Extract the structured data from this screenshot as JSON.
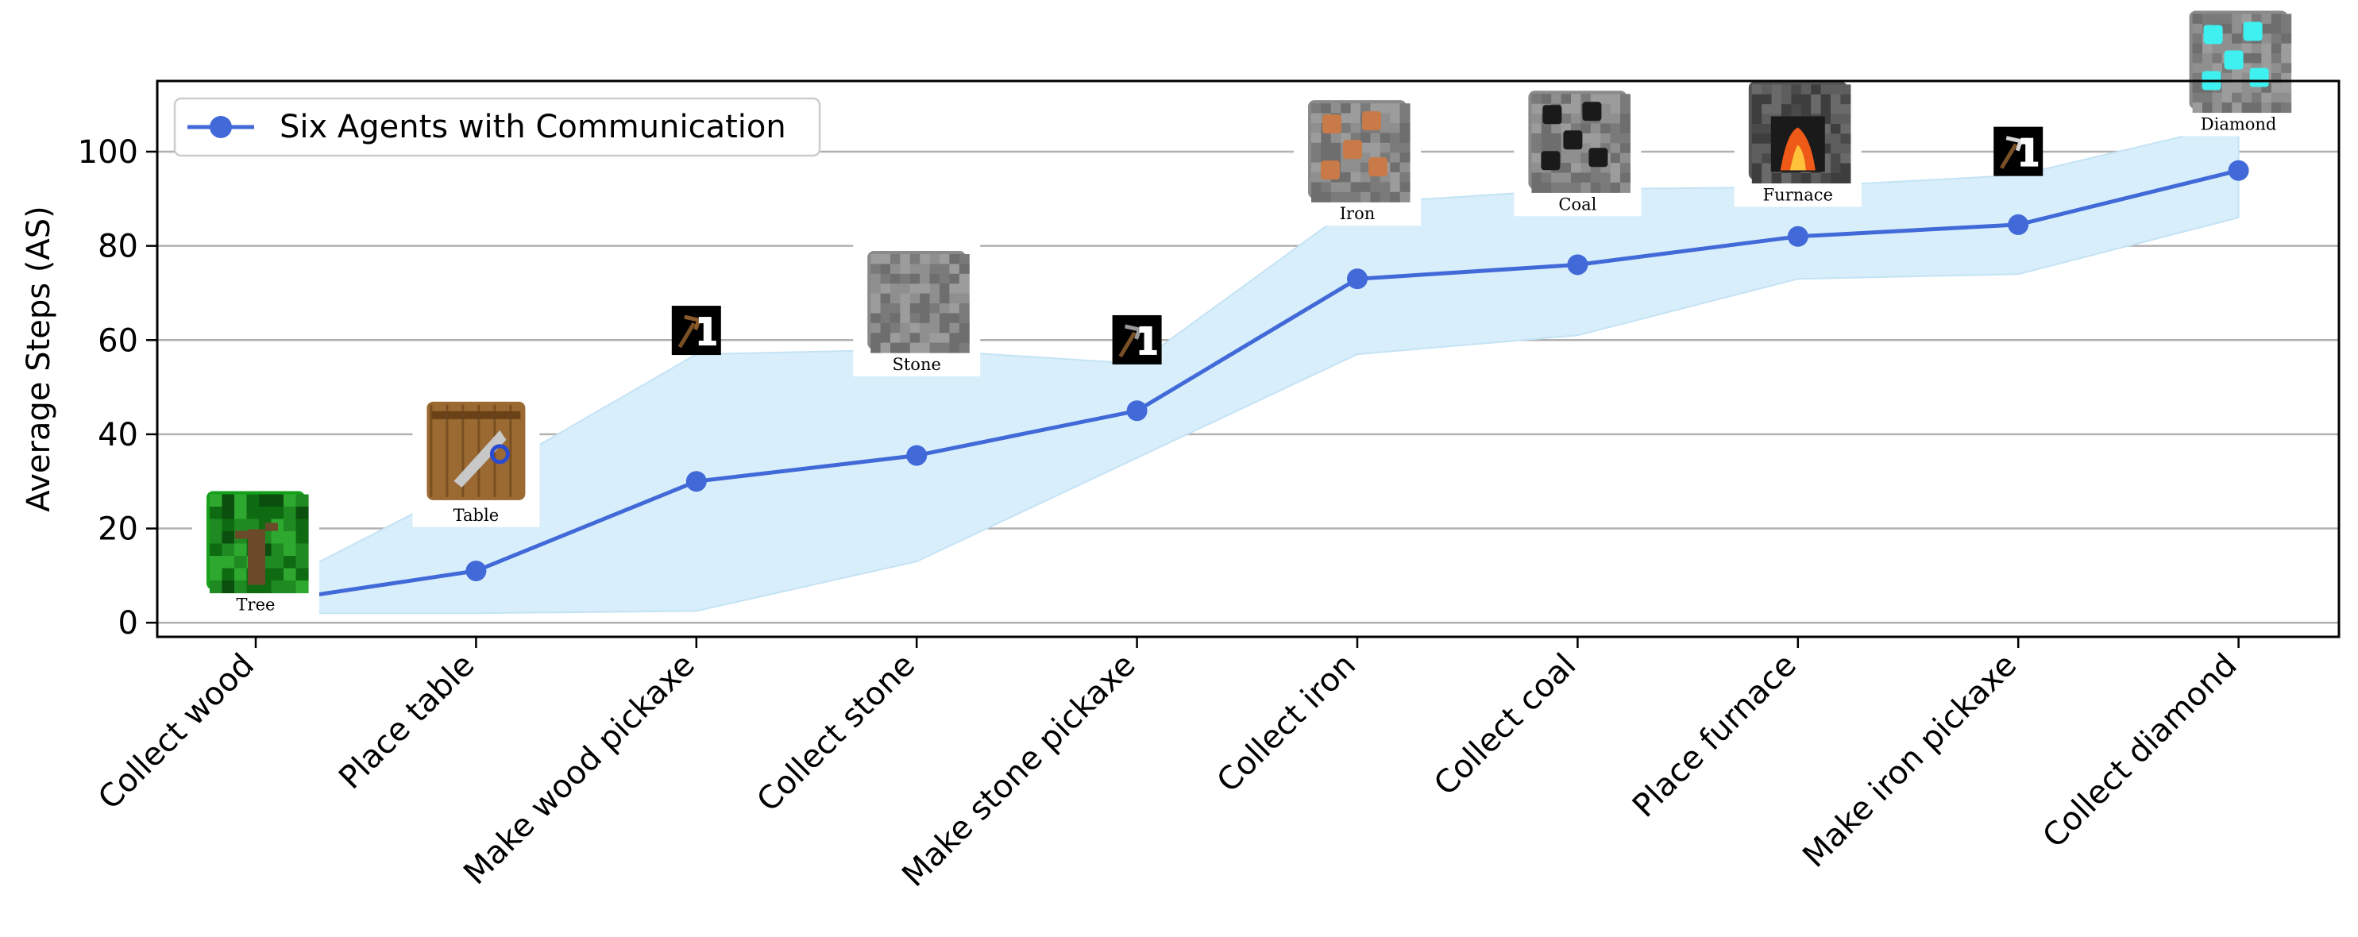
{
  "chart_data": {
    "type": "line",
    "title": "",
    "xlabel": "",
    "ylabel": "Average Steps (AS)",
    "ylim": [
      -3,
      115
    ],
    "yticks": [
      0,
      20,
      40,
      60,
      80,
      100
    ],
    "grid": "horizontal",
    "legend_placement": "top-left",
    "categories": [
      "Collect wood",
      "Place table",
      "Make wood pickaxe",
      "Collect stone",
      "Make stone pickaxe",
      "Collect iron",
      "Collect coal",
      "Place furnace",
      "Make iron pickaxe",
      "Collect diamond"
    ],
    "series": [
      {
        "name": "Six Agents with Communication",
        "values": [
          4,
          11,
          30,
          35.5,
          45,
          73,
          76,
          82,
          84.5,
          96
        ],
        "lower": [
          2,
          2,
          2.5,
          13,
          35,
          57,
          61,
          73,
          74,
          86
        ],
        "upper": [
          6,
          30,
          57,
          58,
          55,
          89,
          92,
          92.5,
          95,
          106
        ],
        "color": "#4169d8",
        "band_color": "#d8eefa"
      }
    ],
    "annotations": [
      {
        "category": "Collect wood",
        "y": 5,
        "icon": "tree-icon",
        "caption": "Tree"
      },
      {
        "category": "Place table",
        "y": 24,
        "icon": "crafting-table-icon",
        "caption": "Table"
      },
      {
        "category": "Make wood pickaxe",
        "y": 57,
        "icon": "wood-pickaxe-icon",
        "caption": ""
      },
      {
        "category": "Collect stone",
        "y": 56,
        "icon": "stone-icon",
        "caption": "Stone"
      },
      {
        "category": "Make stone pickaxe",
        "y": 55,
        "icon": "stone-pickaxe-icon",
        "caption": ""
      },
      {
        "category": "Collect iron",
        "y": 88,
        "icon": "iron-ore-icon",
        "caption": "Iron"
      },
      {
        "category": "Collect coal",
        "y": 90,
        "icon": "coal-ore-icon",
        "caption": "Coal"
      },
      {
        "category": "Place furnace",
        "y": 92,
        "icon": "furnace-icon",
        "caption": "Furnace"
      },
      {
        "category": "Make iron pickaxe",
        "y": 95,
        "icon": "iron-pickaxe-icon",
        "caption": ""
      },
      {
        "category": "Collect diamond",
        "y": 107,
        "icon": "diamond-ore-icon",
        "caption": "Diamond"
      }
    ]
  }
}
